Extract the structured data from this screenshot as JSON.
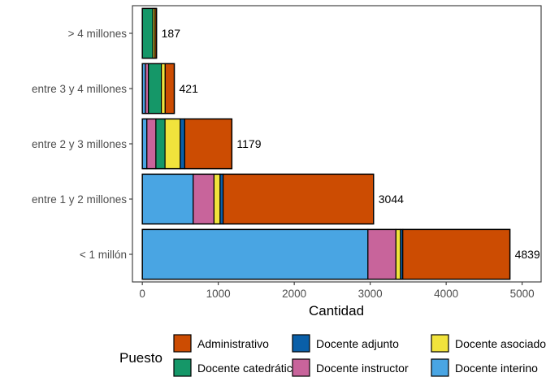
{
  "chart_data": {
    "type": "bar",
    "orientation": "horizontal",
    "stacked": true,
    "xlabel": "Cantidad",
    "ylabel": "",
    "xlim": [
      -130,
      5250
    ],
    "x_ticks": [
      0,
      1000,
      2000,
      3000,
      4000,
      5000
    ],
    "categories": [
      "> 4 millones",
      "entre 3 y 4 millones",
      "entre 2 y 3 millones",
      "entre 1 y 2 millones",
      "< 1 millón"
    ],
    "totals": [
      187,
      421,
      1179,
      3044,
      4839
    ],
    "stack_order": [
      "Docente interino",
      "Docente instructor",
      "Docente catedrático",
      "Docente asociado",
      "Docente adjunto",
      "Administrativo"
    ],
    "series": [
      {
        "name": "Administrativo",
        "color": "#cc4c02",
        "values": [
          20,
          120,
          620,
          1980,
          1410
        ]
      },
      {
        "name": "Docente adjunto",
        "color": "#0a5fa8",
        "values": [
          0,
          0,
          60,
          40,
          30
        ]
      },
      {
        "name": "Docente asociado",
        "color": "#f1e33c",
        "values": [
          27,
          50,
          200,
          80,
          60
        ]
      },
      {
        "name": "Docente catedrático",
        "color": "#159768",
        "values": [
          140,
          170,
          120,
          0,
          0
        ]
      },
      {
        "name": "Docente instructor",
        "color": "#c8649b",
        "values": [
          0,
          40,
          119,
          274,
          369
        ]
      },
      {
        "name": "Docente interino",
        "color": "#49a5e3",
        "values": [
          0,
          41,
          60,
          670,
          2970
        ]
      }
    ],
    "legend": {
      "title": "Puesto",
      "position": "bottom",
      "items": [
        "Administrativo",
        "Docente adjunto",
        "Docente asociado",
        "Docente catedrático",
        "Docente instructor",
        "Docente interino"
      ]
    },
    "grid": false
  }
}
